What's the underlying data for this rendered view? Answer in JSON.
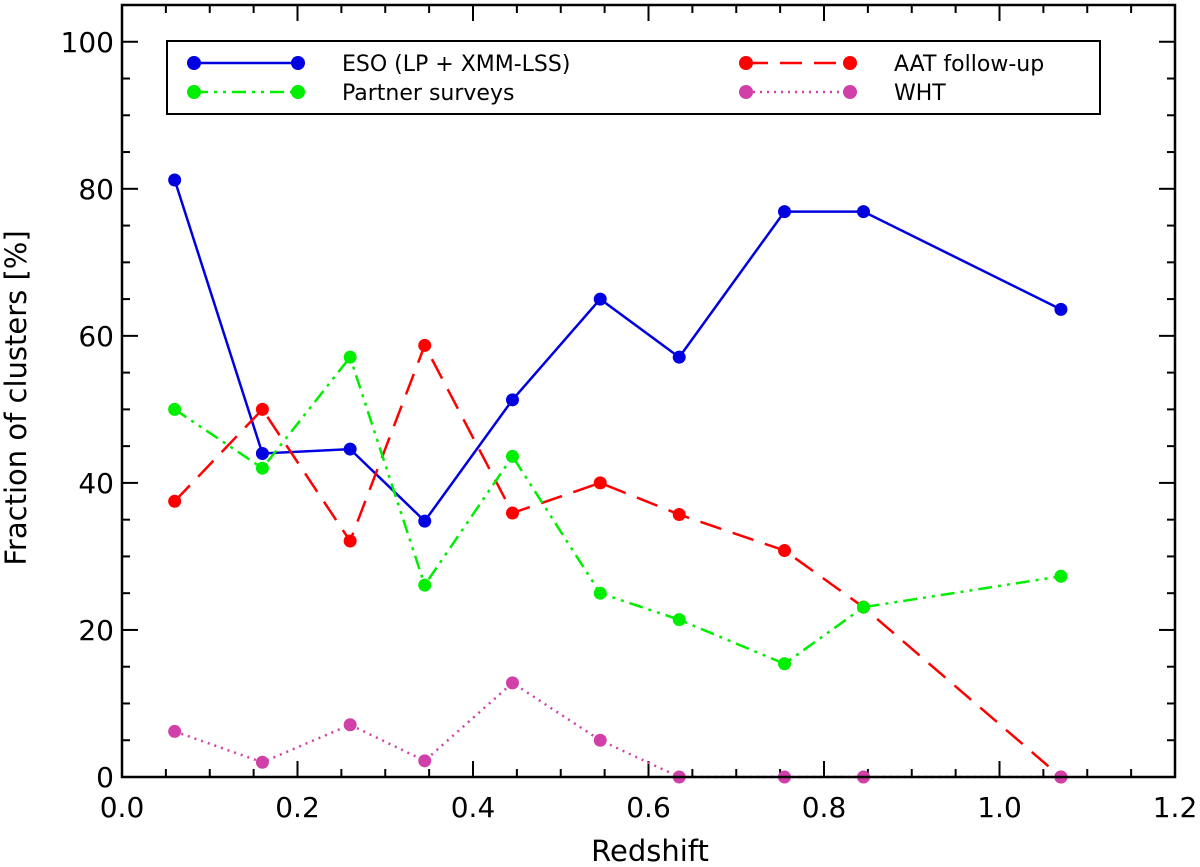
{
  "chart_data": {
    "type": "line",
    "title": "",
    "xlabel": "Redshift",
    "ylabel": "Fraction of clusters [%]",
    "xlim": [
      0.0,
      1.2
    ],
    "ylim": [
      0,
      105
    ],
    "xticks": [
      0.0,
      0.2,
      0.4,
      0.6,
      0.8,
      1.0,
      1.2
    ],
    "xtick_labels": [
      "0.0",
      "0.2",
      "0.4",
      "0.6",
      "0.8",
      "1.0",
      "1.2"
    ],
    "yticks": [
      0,
      20,
      40,
      60,
      80,
      100
    ],
    "ytick_labels": [
      "0",
      "20",
      "40",
      "60",
      "80",
      "100"
    ],
    "x": [
      0.06,
      0.16,
      0.26,
      0.345,
      0.445,
      0.545,
      0.635,
      0.755,
      0.845,
      1.07
    ],
    "legend_position": "top",
    "series": [
      {
        "name": "ESO (LP + XMM-LSS)",
        "color": "#0000e0",
        "line_style": "solid",
        "values": [
          81.2,
          44.0,
          44.6,
          34.8,
          51.3,
          65.0,
          57.1,
          76.9,
          76.9,
          63.6
        ]
      },
      {
        "name": "AAT follow-up",
        "color": "#ff0000",
        "line_style": "dashed",
        "values": [
          37.5,
          50.0,
          32.1,
          58.7,
          35.9,
          40.0,
          35.7,
          30.8,
          23.1,
          0.0
        ]
      },
      {
        "name": "Partner surveys",
        "color": "#00ee00",
        "line_style": "dash-dot-dot",
        "values": [
          50.0,
          42.0,
          57.1,
          26.1,
          43.6,
          25.0,
          21.4,
          15.4,
          23.1,
          27.3
        ]
      },
      {
        "name": "WHT",
        "color": "#d040a8",
        "line_style": "dotted",
        "values": [
          6.2,
          2.0,
          7.1,
          2.2,
          12.8,
          5.0,
          0.0,
          0.0,
          0.0,
          0.0
        ]
      }
    ]
  }
}
